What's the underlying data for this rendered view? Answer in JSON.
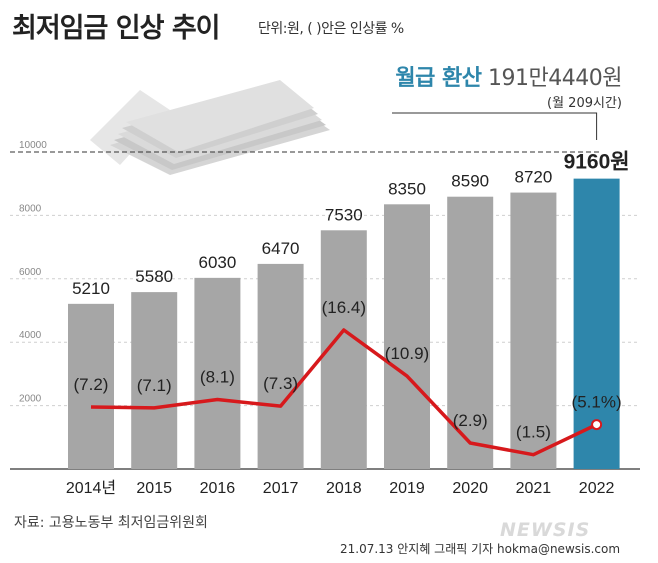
{
  "header": {
    "title": "최저임금 인상 추이",
    "unit_note": "단위:원, ( )안은 인상률 %"
  },
  "callout": {
    "monthly_label": "월급 환산",
    "monthly_value": "191만4440원",
    "hours_note": "(월 209시간)"
  },
  "chart_data": {
    "type": "bar",
    "title": "최저임금 인상 추이",
    "unit_note": "단위:원, ( )안은 인상률 %",
    "categories": [
      "2014년",
      "2015",
      "2016",
      "2017",
      "2018",
      "2019",
      "2020",
      "2021",
      "2022"
    ],
    "series": [
      {
        "name": "최저임금(원)",
        "type": "bar",
        "values": [
          5210,
          5580,
          6030,
          6470,
          7530,
          8350,
          8590,
          8720,
          9160
        ],
        "value_labels": [
          "5210",
          "5580",
          "6030",
          "6470",
          "7530",
          "8350",
          "8590",
          "8720",
          "9160원"
        ],
        "highlight_index": 8
      },
      {
        "name": "인상률(%)",
        "type": "line",
        "values": [
          7.2,
          7.1,
          8.1,
          7.3,
          16.4,
          10.9,
          2.9,
          1.5,
          5.1
        ],
        "value_labels": [
          "(7.2)",
          "(7.1)",
          "(8.1)",
          "(7.3)",
          "(16.4)",
          "(10.9)",
          "(2.9)",
          "(1.5)",
          "(5.1%)"
        ]
      }
    ],
    "y_ticks": [
      "2000",
      "4000",
      "6000",
      "8000",
      "10000"
    ],
    "ylim": [
      0,
      10000
    ],
    "colors": {
      "bar": "#a6a6a6",
      "highlight": "#2e86ab",
      "line": "#d7191c",
      "text": "#222222"
    }
  },
  "footer": {
    "source": "자료: 고용노동부 최저임금위원회",
    "credit": "21.07.13 안지혜 그래픽 기자 hokma@newsis.com",
    "watermark": "NEWSIS"
  }
}
